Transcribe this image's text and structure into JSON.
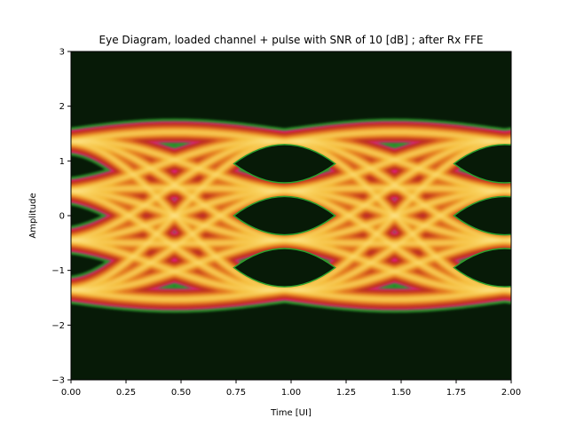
{
  "chart_data": {
    "type": "heatmap",
    "subtype": "eye-diagram",
    "title": "Eye Diagram,  loaded channel + pulse with SNR of 10 [dB] ; after Rx FFE",
    "xlabel": "Time [UI]",
    "ylabel": "Amplitude",
    "xlim": [
      0.0,
      2.0
    ],
    "ylim": [
      -3,
      3
    ],
    "x_ticks": [
      "0.00",
      "0.25",
      "0.50",
      "0.75",
      "1.00",
      "1.25",
      "1.50",
      "1.75",
      "2.00"
    ],
    "y_ticks": [
      "3",
      "2",
      "1",
      "0",
      "−1",
      "−2",
      "−3"
    ],
    "x_tick_values": [
      0.0,
      0.25,
      0.5,
      0.75,
      1.0,
      1.25,
      1.5,
      1.75,
      2.0
    ],
    "y_tick_values": [
      3,
      2,
      1,
      0,
      -1,
      -2,
      -3
    ],
    "modulation": "PAM4",
    "symbol_levels": [
      -1.35,
      -0.45,
      0.45,
      1.35
    ],
    "symbol_centers_ui": [
      0.97,
      1.97
    ],
    "eye_openings": [
      {
        "center_x": 0.97,
        "center_y": 0.95,
        "height": 0.7
      },
      {
        "center_x": 0.97,
        "center_y": 0.0,
        "height": 0.7
      },
      {
        "center_x": 0.97,
        "center_y": -0.95,
        "height": 0.7
      }
    ],
    "envelope_max": 1.8,
    "envelope_min": -1.8,
    "colormap": [
      "#071a07",
      "#2ca02c",
      "#ff1493",
      "#b22222",
      "#e0661a",
      "#f7c73a",
      "#fff5b0"
    ],
    "background_color": "#071a07",
    "grid": false,
    "legend": false
  }
}
